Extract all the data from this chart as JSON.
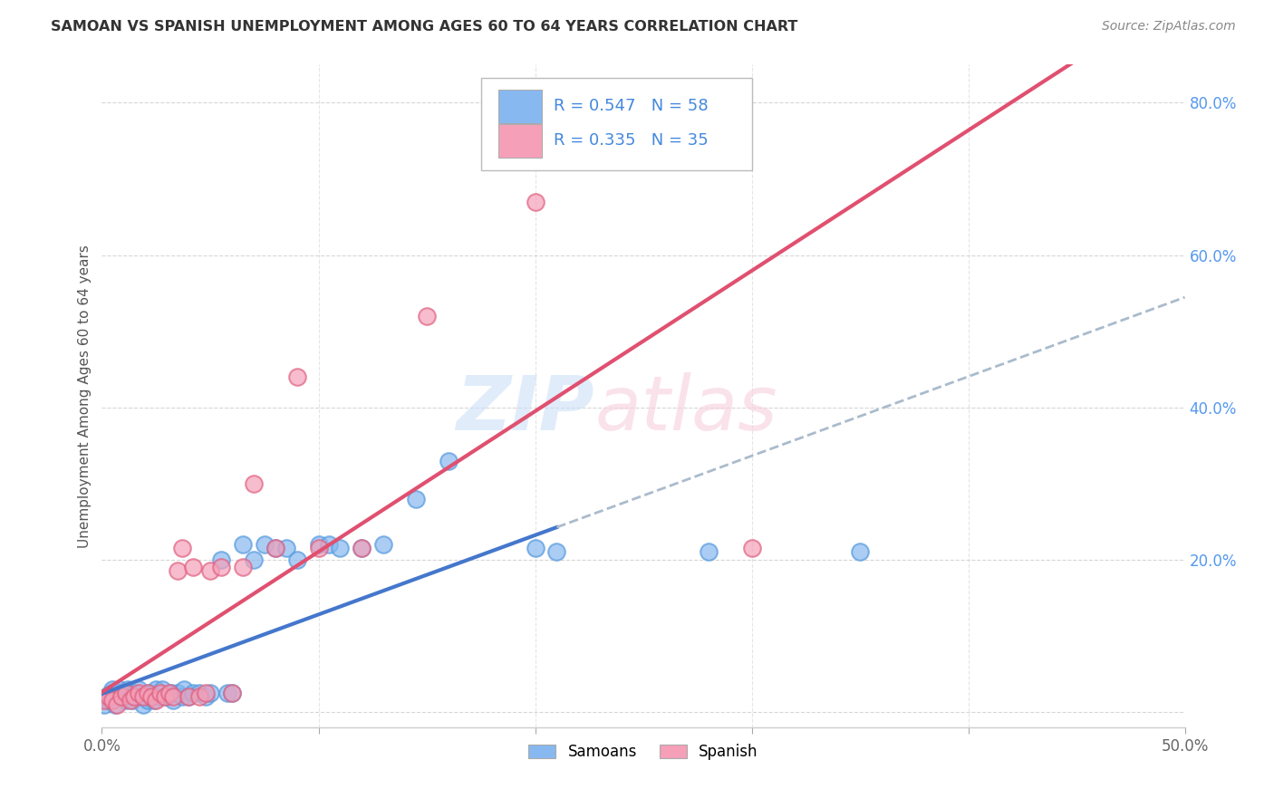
{
  "title": "SAMOAN VS SPANISH UNEMPLOYMENT AMONG AGES 60 TO 64 YEARS CORRELATION CHART",
  "source": "Source: ZipAtlas.com",
  "ylabel": "Unemployment Among Ages 60 to 64 years",
  "xlim": [
    0.0,
    0.5
  ],
  "ylim": [
    -0.02,
    0.85
  ],
  "xticks": [
    0.0,
    0.1,
    0.2,
    0.3,
    0.4,
    0.5
  ],
  "xtick_labels": [
    "0.0%",
    "",
    "",
    "",
    "",
    "50.0%"
  ],
  "yticks_right": [
    0.0,
    0.2,
    0.4,
    0.6,
    0.8
  ],
  "ytick_right_labels": [
    "",
    "20.0%",
    "40.0%",
    "60.0%",
    "80.0%"
  ],
  "samoans_color": "#88b8f0",
  "samoans_edge": "#5599dd",
  "spanish_color": "#f5a0b8",
  "spanish_edge": "#e06080",
  "samoans_line_color": "#4477cc",
  "spanish_line_color": "#e05070",
  "dashed_line_color": "#aabbcc",
  "background_color": "#ffffff",
  "grid_color": "#cccccc",
  "samoans_R": 0.547,
  "samoans_N": 58,
  "spanish_R": 0.335,
  "spanish_N": 35,
  "samoans_x": [
    0.001,
    0.002,
    0.003,
    0.004,
    0.005,
    0.006,
    0.007,
    0.008,
    0.009,
    0.01,
    0.011,
    0.012,
    0.013,
    0.014,
    0.015,
    0.016,
    0.017,
    0.018,
    0.019,
    0.02,
    0.021,
    0.022,
    0.023,
    0.024,
    0.025,
    0.027,
    0.028,
    0.03,
    0.032,
    0.033,
    0.035,
    0.037,
    0.038,
    0.04,
    0.042,
    0.045,
    0.048,
    0.05,
    0.055,
    0.058,
    0.06,
    0.065,
    0.07,
    0.075,
    0.08,
    0.085,
    0.09,
    0.1,
    0.105,
    0.11,
    0.12,
    0.13,
    0.145,
    0.16,
    0.2,
    0.21,
    0.28,
    0.35
  ],
  "samoans_y": [
    0.01,
    0.02,
    0.015,
    0.025,
    0.03,
    0.01,
    0.02,
    0.03,
    0.025,
    0.02,
    0.015,
    0.03,
    0.02,
    0.015,
    0.025,
    0.02,
    0.03,
    0.02,
    0.01,
    0.02,
    0.015,
    0.025,
    0.02,
    0.015,
    0.03,
    0.02,
    0.03,
    0.02,
    0.025,
    0.015,
    0.025,
    0.02,
    0.03,
    0.02,
    0.025,
    0.025,
    0.02,
    0.025,
    0.2,
    0.025,
    0.025,
    0.22,
    0.2,
    0.22,
    0.215,
    0.215,
    0.2,
    0.22,
    0.22,
    0.215,
    0.215,
    0.22,
    0.28,
    0.33,
    0.215,
    0.21,
    0.21,
    0.21
  ],
  "spanish_x": [
    0.001,
    0.003,
    0.005,
    0.007,
    0.009,
    0.011,
    0.013,
    0.015,
    0.017,
    0.019,
    0.021,
    0.023,
    0.025,
    0.027,
    0.029,
    0.031,
    0.033,
    0.035,
    0.037,
    0.04,
    0.042,
    0.045,
    0.048,
    0.05,
    0.055,
    0.06,
    0.065,
    0.07,
    0.08,
    0.09,
    0.1,
    0.12,
    0.15,
    0.2,
    0.3
  ],
  "spanish_y": [
    0.015,
    0.02,
    0.015,
    0.01,
    0.02,
    0.025,
    0.015,
    0.02,
    0.025,
    0.02,
    0.025,
    0.02,
    0.015,
    0.025,
    0.02,
    0.025,
    0.02,
    0.185,
    0.215,
    0.02,
    0.19,
    0.02,
    0.025,
    0.185,
    0.19,
    0.025,
    0.19,
    0.3,
    0.215,
    0.44,
    0.215,
    0.215,
    0.52,
    0.67,
    0.215
  ]
}
